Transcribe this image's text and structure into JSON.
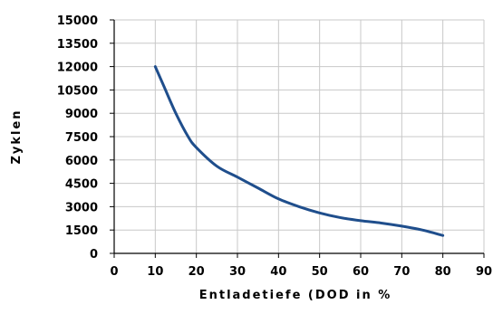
{
  "chart_data": {
    "type": "line",
    "title": "",
    "xlabel": "Entladetiefe (DOD in %",
    "ylabel": "Zyklen",
    "xlim": [
      0,
      90
    ],
    "ylim": [
      0,
      15000
    ],
    "x_ticks": [
      0,
      10,
      20,
      30,
      40,
      50,
      60,
      70,
      80,
      90
    ],
    "y_ticks": [
      0,
      1500,
      3000,
      4500,
      6000,
      7500,
      9000,
      10500,
      12000,
      13500,
      15000
    ],
    "grid": true,
    "line_color": "#1f4e8c",
    "grid_color": "#c8c8c8",
    "series": [
      {
        "x": [
          10,
          12,
          15,
          18,
          20,
          25,
          30,
          35,
          40,
          45,
          50,
          55,
          60,
          65,
          70,
          75,
          80
        ],
        "y": [
          12000,
          10800,
          9000,
          7500,
          6800,
          5600,
          4900,
          4200,
          3500,
          3000,
          2600,
          2300,
          2100,
          1950,
          1750,
          1500,
          1150
        ]
      }
    ]
  }
}
